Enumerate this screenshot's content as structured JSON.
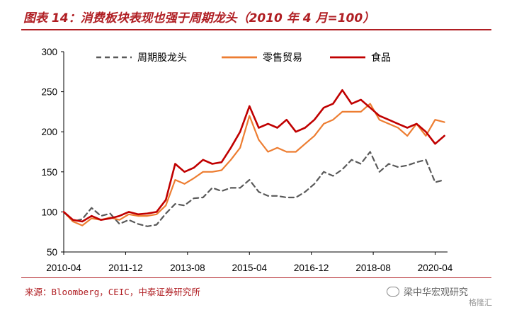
{
  "header": {
    "title": "图表 14：消费板块表现也强于周期龙头（2010 年 4 月=100）"
  },
  "footer": {
    "source": "来源：Bloomberg，CEIC，中泰证券研究所",
    "watermark": "梁中华宏观研究",
    "badge": "格隆汇"
  },
  "colors": {
    "accent": "#b01e23",
    "cyclical": "#595959",
    "retail": "#ed7d31",
    "food": "#c00000"
  },
  "chart_data": {
    "type": "line",
    "title": "",
    "xlabel": "",
    "ylabel": "",
    "ylim": [
      50,
      300
    ],
    "yticks": [
      50,
      100,
      150,
      200,
      250,
      300
    ],
    "xrange": [
      "2010-04",
      "2020-08"
    ],
    "xticks": [
      "2010-04",
      "2011-12",
      "2013-08",
      "2015-04",
      "2016-12",
      "2018-08",
      "2020-04"
    ],
    "legend_position": "top",
    "grid": false,
    "series": [
      {
        "name": "周期股龙头",
        "style": "dashed",
        "color": "#595959",
        "x": [
          "2010-04",
          "2010-07",
          "2010-10",
          "2011-01",
          "2011-04",
          "2011-07",
          "2011-10",
          "2012-01",
          "2012-04",
          "2012-07",
          "2012-10",
          "2013-01",
          "2013-04",
          "2013-07",
          "2013-10",
          "2014-01",
          "2014-04",
          "2014-07",
          "2014-10",
          "2015-01",
          "2015-04",
          "2015-07",
          "2015-10",
          "2016-01",
          "2016-04",
          "2016-07",
          "2016-10",
          "2017-01",
          "2017-04",
          "2017-07",
          "2017-10",
          "2018-01",
          "2018-04",
          "2018-07",
          "2018-10",
          "2019-01",
          "2019-04",
          "2019-07",
          "2019-10",
          "2020-01",
          "2020-04",
          "2020-07"
        ],
        "values": [
          100,
          88,
          91,
          105,
          95,
          98,
          85,
          90,
          85,
          82,
          84,
          98,
          110,
          108,
          117,
          118,
          130,
          126,
          130,
          130,
          140,
          125,
          120,
          120,
          118,
          118,
          125,
          135,
          150,
          145,
          153,
          165,
          160,
          175,
          150,
          160,
          156,
          158,
          162,
          165,
          137,
          140
        ]
      },
      {
        "name": "零售贸易",
        "style": "solid",
        "color": "#ed7d31",
        "x": [
          "2010-04",
          "2010-07",
          "2010-10",
          "2011-01",
          "2011-04",
          "2011-07",
          "2011-10",
          "2012-01",
          "2012-04",
          "2012-07",
          "2012-10",
          "2013-01",
          "2013-04",
          "2013-07",
          "2013-10",
          "2014-01",
          "2014-04",
          "2014-07",
          "2014-10",
          "2015-01",
          "2015-04",
          "2015-07",
          "2015-10",
          "2016-01",
          "2016-04",
          "2016-07",
          "2016-10",
          "2017-01",
          "2017-04",
          "2017-07",
          "2017-10",
          "2018-01",
          "2018-04",
          "2018-07",
          "2018-10",
          "2019-01",
          "2019-04",
          "2019-07",
          "2019-10",
          "2020-01",
          "2020-04",
          "2020-07"
        ],
        "values": [
          100,
          88,
          83,
          92,
          90,
          93,
          90,
          97,
          95,
          95,
          97,
          108,
          140,
          135,
          142,
          150,
          150,
          152,
          165,
          180,
          220,
          190,
          175,
          180,
          175,
          175,
          185,
          195,
          210,
          215,
          225,
          225,
          225,
          235,
          215,
          210,
          205,
          195,
          210,
          195,
          215,
          212
        ]
      },
      {
        "name": "食品",
        "style": "solid",
        "color": "#c00000",
        "x": [
          "2010-04",
          "2010-07",
          "2010-10",
          "2011-01",
          "2011-04",
          "2011-07",
          "2011-10",
          "2012-01",
          "2012-04",
          "2012-07",
          "2012-10",
          "2013-01",
          "2013-04",
          "2013-07",
          "2013-10",
          "2014-01",
          "2014-04",
          "2014-07",
          "2014-10",
          "2015-01",
          "2015-04",
          "2015-07",
          "2015-10",
          "2016-01",
          "2016-04",
          "2016-07",
          "2016-10",
          "2017-01",
          "2017-04",
          "2017-07",
          "2017-10",
          "2018-01",
          "2018-04",
          "2018-07",
          "2018-10",
          "2019-01",
          "2019-04",
          "2019-07",
          "2019-10",
          "2020-01",
          "2020-04",
          "2020-07"
        ],
        "values": [
          100,
          90,
          88,
          95,
          90,
          92,
          95,
          100,
          97,
          98,
          100,
          115,
          160,
          150,
          155,
          165,
          160,
          162,
          180,
          200,
          232,
          205,
          210,
          205,
          215,
          200,
          205,
          215,
          230,
          235,
          252,
          235,
          240,
          230,
          220,
          215,
          210,
          205,
          210,
          200,
          185,
          195
        ]
      }
    ]
  }
}
